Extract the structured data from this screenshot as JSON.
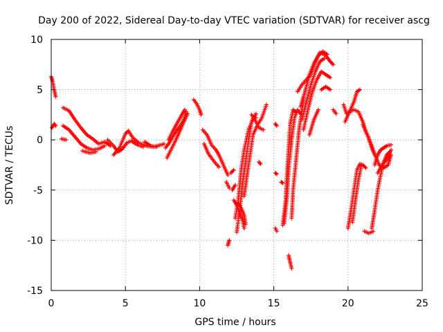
{
  "chart_data": {
    "type": "scatter",
    "title": "Day 200 of 2022, Sidereal Day-to-day VTEC variation (SDTVAR) for receiver ascg",
    "xlabel": "GPS time / hours",
    "ylabel": "SDTVAR / TECUs",
    "xlim": [
      0,
      25
    ],
    "ylim": [
      -15,
      10
    ],
    "xticks": [
      0,
      5,
      10,
      15,
      20,
      25
    ],
    "xtick_labels": [
      "0",
      "5",
      "10",
      "15",
      "20",
      "25"
    ],
    "yticks": [
      -15,
      -10,
      -5,
      0,
      5,
      10
    ],
    "ytick_labels": [
      "-15",
      "-10",
      "-5",
      "0",
      "5",
      "10"
    ],
    "grid": true,
    "marker": "plus",
    "color": "#ff0000",
    "segments": [
      [
        [
          0.0,
          6.3
        ],
        [
          0.1,
          5.8
        ],
        [
          0.2,
          5.0
        ],
        [
          0.3,
          4.3
        ]
      ],
      [
        [
          0.05,
          1.2
        ],
        [
          0.2,
          1.6
        ],
        [
          0.3,
          1.4
        ]
      ],
      [
        [
          0.8,
          3.2
        ],
        [
          1.2,
          2.9
        ],
        [
          1.6,
          2.0
        ],
        [
          2.0,
          1.2
        ],
        [
          2.4,
          0.5
        ],
        [
          2.8,
          0.1
        ],
        [
          3.2,
          -0.4
        ],
        [
          3.6,
          -0.2
        ],
        [
          4.0,
          -0.6
        ]
      ],
      [
        [
          0.8,
          1.4
        ],
        [
          1.2,
          1.0
        ],
        [
          1.6,
          0.3
        ],
        [
          2.0,
          -0.4
        ],
        [
          2.4,
          -0.8
        ],
        [
          2.8,
          -1.0
        ],
        [
          3.2,
          -0.9
        ],
        [
          3.6,
          -0.6
        ]
      ],
      [
        [
          0.7,
          0.1
        ],
        [
          1.0,
          0.0
        ]
      ],
      [
        [
          2.1,
          -1.1
        ],
        [
          2.6,
          -1.3
        ],
        [
          3.0,
          -1.2
        ]
      ],
      [
        [
          3.8,
          0.0
        ],
        [
          4.2,
          -0.6
        ],
        [
          4.5,
          -1.2
        ],
        [
          4.8,
          -0.9
        ],
        [
          5.1,
          -0.3
        ],
        [
          5.4,
          -0.1
        ],
        [
          5.8,
          -0.5
        ],
        [
          6.2,
          -0.7
        ]
      ],
      [
        [
          4.2,
          -1.5
        ],
        [
          4.6,
          -0.8
        ],
        [
          5.0,
          0.6
        ],
        [
          5.2,
          0.9
        ],
        [
          5.5,
          0.2
        ],
        [
          5.9,
          -0.3
        ],
        [
          6.4,
          -0.6
        ],
        [
          6.9,
          -0.7
        ],
        [
          7.4,
          -0.5
        ],
        [
          7.6,
          -0.4
        ]
      ],
      [
        [
          6.3,
          -0.2
        ],
        [
          6.7,
          -0.6
        ],
        [
          7.1,
          -0.7
        ]
      ],
      [
        [
          7.7,
          -0.8
        ],
        [
          8.0,
          -0.2
        ],
        [
          8.3,
          0.6
        ],
        [
          8.6,
          1.2
        ],
        [
          8.9,
          1.9
        ],
        [
          9.1,
          2.8
        ]
      ],
      [
        [
          7.8,
          -1.8
        ],
        [
          8.1,
          -0.9
        ],
        [
          8.4,
          0.0
        ],
        [
          8.7,
          1.0
        ],
        [
          9.0,
          2.0
        ],
        [
          9.2,
          2.6
        ]
      ],
      [
        [
          7.9,
          0.0
        ],
        [
          8.2,
          0.9
        ],
        [
          8.5,
          1.7
        ],
        [
          8.8,
          2.5
        ],
        [
          9.0,
          3.0
        ]
      ],
      [
        [
          9.6,
          4.0
        ],
        [
          9.8,
          3.6
        ],
        [
          10.0,
          3.0
        ],
        [
          10.1,
          2.5
        ]
      ],
      [
        [
          10.2,
          1.0
        ],
        [
          10.5,
          0.5
        ],
        [
          10.8,
          -0.5
        ],
        [
          11.1,
          -1.0
        ],
        [
          11.3,
          -1.5
        ],
        [
          11.6,
          -2.5
        ],
        [
          11.9,
          -3.5
        ]
      ],
      [
        [
          10.3,
          -0.4
        ],
        [
          10.6,
          -1.4
        ],
        [
          11.0,
          -2.2
        ],
        [
          11.3,
          -2.7
        ]
      ],
      [
        [
          11.8,
          -4.2
        ],
        [
          12.0,
          -4.8
        ]
      ],
      [
        [
          11.9,
          -10.5
        ],
        [
          12.0,
          -10.0
        ]
      ],
      [
        [
          12.1,
          -3.3
        ],
        [
          12.3,
          -3.0
        ]
      ],
      [
        [
          12.3,
          -6.0
        ],
        [
          12.5,
          -6.5
        ],
        [
          12.7,
          -7.3
        ],
        [
          12.9,
          -8.0
        ],
        [
          13.0,
          -8.8
        ]
      ],
      [
        [
          12.2,
          -5.0
        ],
        [
          12.4,
          -4.5
        ]
      ],
      [
        [
          12.6,
          -6.3
        ],
        [
          12.8,
          -6.8
        ],
        [
          13.0,
          -7.5
        ],
        [
          13.1,
          -8.4
        ]
      ],
      [
        [
          12.4,
          -7.8
        ],
        [
          12.6,
          -6.0
        ],
        [
          12.8,
          -3.0
        ],
        [
          13.0,
          -1.0
        ],
        [
          13.3,
          1.0
        ],
        [
          13.6,
          2.1
        ],
        [
          13.8,
          2.2
        ]
      ],
      [
        [
          12.5,
          -9.2
        ],
        [
          12.7,
          -7.0
        ],
        [
          12.9,
          -4.3
        ],
        [
          13.1,
          -2.2
        ],
        [
          13.3,
          0.0
        ],
        [
          13.5,
          1.8
        ],
        [
          13.8,
          2.6
        ]
      ],
      [
        [
          13.0,
          -5.6
        ],
        [
          13.2,
          -3.5
        ],
        [
          13.4,
          -1.5
        ],
        [
          13.6,
          0.5
        ],
        [
          13.9,
          1.5
        ],
        [
          14.2,
          2.2
        ],
        [
          14.5,
          3.5
        ]
      ],
      [
        [
          13.5,
          2.5
        ],
        [
          13.8,
          1.8
        ],
        [
          14.0,
          1.2
        ],
        [
          14.3,
          1.0
        ]
      ],
      [
        [
          14.0,
          -2.2
        ],
        [
          14.1,
          -2.4
        ]
      ],
      [
        [
          15.1,
          1.6
        ],
        [
          15.2,
          1.4
        ]
      ],
      [
        [
          15.1,
          -3.3
        ],
        [
          15.2,
          -3.4
        ]
      ],
      [
        [
          15.1,
          -8.8
        ],
        [
          15.2,
          -9.1
        ]
      ],
      [
        [
          15.5,
          -4.2
        ],
        [
          15.6,
          -4.3
        ]
      ],
      [
        [
          15.6,
          -8.5
        ],
        [
          15.8,
          -6.0
        ],
        [
          15.9,
          -3.0
        ],
        [
          16.0,
          -0.8
        ],
        [
          16.1,
          1.6
        ],
        [
          16.3,
          3.0
        ],
        [
          16.5,
          2.7
        ]
      ],
      [
        [
          15.7,
          -8.3
        ],
        [
          15.9,
          -5.5
        ],
        [
          16.0,
          -2.8
        ],
        [
          16.2,
          0.0
        ],
        [
          16.4,
          2.2
        ],
        [
          16.6,
          3.0
        ],
        [
          16.8,
          2.6
        ]
      ],
      [
        [
          16.0,
          -11.5
        ],
        [
          16.1,
          -12.2
        ],
        [
          16.2,
          -12.8
        ]
      ],
      [
        [
          16.2,
          -7.8
        ],
        [
          16.3,
          -5.0
        ],
        [
          16.5,
          -2.0
        ],
        [
          16.7,
          1.0
        ],
        [
          16.9,
          3.0
        ],
        [
          17.0,
          4.2
        ]
      ],
      [
        [
          16.6,
          4.8
        ],
        [
          16.9,
          5.5
        ],
        [
          17.2,
          6.0
        ],
        [
          17.5,
          6.5
        ],
        [
          17.8,
          7.8
        ],
        [
          18.1,
          8.7
        ],
        [
          18.5,
          8.4
        ],
        [
          18.8,
          7.8
        ],
        [
          19.0,
          7.5
        ]
      ],
      [
        [
          16.8,
          3.3
        ],
        [
          17.1,
          4.8
        ],
        [
          17.4,
          6.5
        ],
        [
          17.7,
          7.6
        ],
        [
          18.0,
          8.4
        ],
        [
          18.3,
          8.8
        ],
        [
          18.6,
          8.5
        ]
      ],
      [
        [
          16.9,
          2.0
        ],
        [
          17.2,
          3.8
        ],
        [
          17.5,
          5.5
        ],
        [
          17.8,
          6.8
        ],
        [
          18.1,
          7.8
        ],
        [
          18.4,
          8.1
        ]
      ],
      [
        [
          17.0,
          1.0
        ],
        [
          17.3,
          3.0
        ],
        [
          17.6,
          4.8
        ],
        [
          17.9,
          6.0
        ],
        [
          18.2,
          6.8
        ],
        [
          18.5,
          6.5
        ],
        [
          18.8,
          6.2
        ]
      ],
      [
        [
          17.4,
          0.5
        ],
        [
          17.7,
          2.0
        ],
        [
          18.0,
          3.0
        ]
      ],
      [
        [
          18.2,
          5.0
        ],
        [
          18.5,
          5.3
        ],
        [
          18.8,
          5.0
        ]
      ],
      [
        [
          19.0,
          3.0
        ],
        [
          19.2,
          2.6
        ]
      ],
      [
        [
          19.7,
          3.5
        ],
        [
          19.9,
          2.6
        ],
        [
          20.1,
          2.8
        ],
        [
          20.4,
          3.8
        ],
        [
          20.6,
          4.8
        ],
        [
          20.8,
          5.0
        ]
      ],
      [
        [
          19.8,
          1.8
        ],
        [
          20.1,
          2.8
        ],
        [
          20.4,
          3.0
        ],
        [
          20.7,
          2.8
        ],
        [
          21.0,
          1.8
        ],
        [
          21.2,
          0.8
        ],
        [
          21.4,
          0.2
        ],
        [
          21.6,
          -0.6
        ],
        [
          21.8,
          -1.5
        ]
      ],
      [
        [
          20.0,
          -8.8
        ],
        [
          20.2,
          -7.0
        ],
        [
          20.4,
          -5.0
        ],
        [
          20.6,
          -3.0
        ],
        [
          20.8,
          -2.4
        ],
        [
          21.0,
          -2.5
        ],
        [
          21.2,
          -2.8
        ]
      ],
      [
        [
          20.3,
          -8.2
        ],
        [
          20.5,
          -6.0
        ],
        [
          20.7,
          -4.0
        ],
        [
          20.9,
          -2.5
        ]
      ],
      [
        [
          21.0,
          1.5
        ],
        [
          21.3,
          0.5
        ],
        [
          21.6,
          -0.8
        ],
        [
          21.9,
          -1.8
        ],
        [
          22.1,
          -2.5
        ],
        [
          22.4,
          -2.8
        ],
        [
          22.7,
          -2.5
        ],
        [
          22.9,
          -1.5
        ]
      ],
      [
        [
          21.1,
          -9.1
        ],
        [
          21.4,
          -9.3
        ],
        [
          21.7,
          -9.1
        ]
      ],
      [
        [
          21.6,
          -8.8
        ],
        [
          21.8,
          -7.0
        ],
        [
          22.0,
          -5.0
        ],
        [
          22.2,
          -3.5
        ],
        [
          22.4,
          -2.2
        ],
        [
          22.6,
          -1.5
        ],
        [
          22.8,
          -1.2
        ]
      ],
      [
        [
          21.8,
          -2.5
        ],
        [
          22.0,
          -1.5
        ],
        [
          22.2,
          -1.0
        ],
        [
          22.4,
          -0.8
        ],
        [
          22.6,
          -0.6
        ],
        [
          22.9,
          -0.5
        ]
      ],
      [
        [
          22.0,
          -3.3
        ],
        [
          22.3,
          -2.5
        ],
        [
          22.6,
          -2.0
        ],
        [
          22.9,
          -1.0
        ]
      ]
    ]
  }
}
